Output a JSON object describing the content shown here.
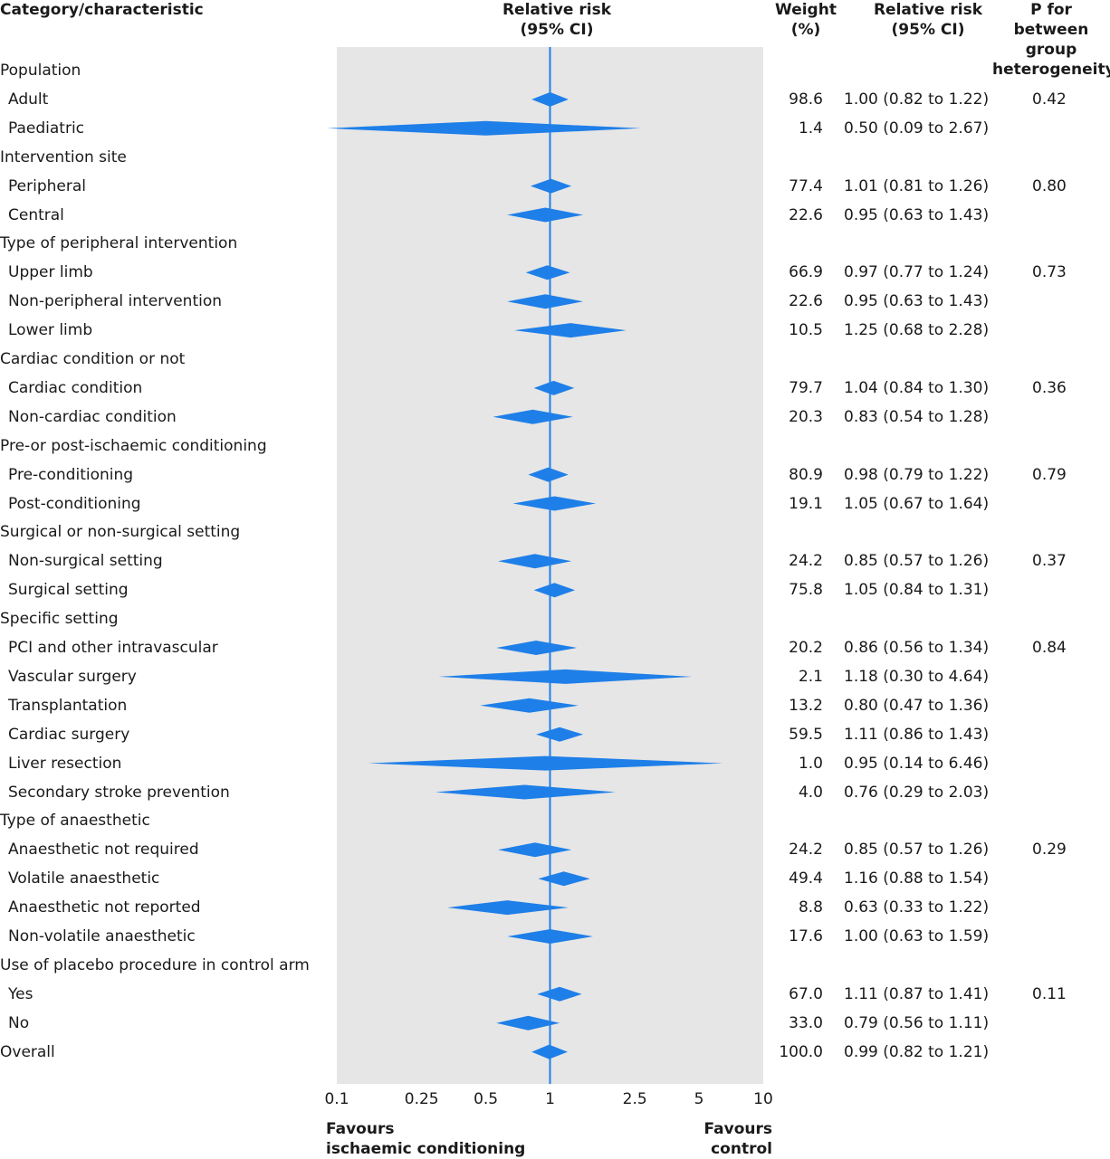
{
  "headers": {
    "category": "Category/characteristic",
    "rr_plot_1": "Relative risk",
    "rr_plot_2": "(95% CI)",
    "weight_1": "Weight",
    "weight_2": "(%)",
    "rr_1": "Relative risk",
    "rr_2": "(95% CI)",
    "p_1": "P for",
    "p_2": "between group",
    "p_3": "heterogeneity"
  },
  "favours": {
    "left_1": "Favours",
    "left_2": "ischaemic conditioning",
    "right_1": "Favours",
    "right_2": "control"
  },
  "colors": {
    "diamond": "#1f7fe8",
    "reference_line": "#1f7fe8",
    "plot_bg": "#e6e6e6"
  },
  "chart_data": {
    "type": "forest",
    "x_scale": "log",
    "xlim": [
      0.1,
      10
    ],
    "reference": 1,
    "ticks": [
      {
        "value": 0.1,
        "label": "0.1"
      },
      {
        "value": 0.25,
        "label": "0.25"
      },
      {
        "value": 0.5,
        "label": "0.5"
      },
      {
        "value": 1,
        "label": "1"
      },
      {
        "value": 2.5,
        "label": "2.5"
      },
      {
        "value": 5,
        "label": "5"
      },
      {
        "value": 10,
        "label": "10"
      }
    ],
    "rows": [
      {
        "label": "Population",
        "header": true
      },
      {
        "label": "Adult",
        "weight": "98.6",
        "ci": "1.00 (0.82 to 1.22)",
        "p": "0.42",
        "est": 1.0,
        "lo": 0.82,
        "hi": 1.22
      },
      {
        "label": "Paediatric",
        "weight": "1.4",
        "ci": "0.50 (0.09 to 2.67)",
        "est": 0.5,
        "lo": 0.09,
        "hi": 2.67
      },
      {
        "label": "Intervention site",
        "header": true
      },
      {
        "label": "Peripheral",
        "weight": "77.4",
        "ci": "1.01 (0.81 to 1.26)",
        "p": "0.80",
        "est": 1.01,
        "lo": 0.81,
        "hi": 1.26
      },
      {
        "label": "Central",
        "weight": "22.6",
        "ci": "0.95 (0.63 to 1.43)",
        "est": 0.95,
        "lo": 0.63,
        "hi": 1.43
      },
      {
        "label": "Type of peripheral intervention",
        "header": true
      },
      {
        "label": "Upper limb",
        "weight": "66.9",
        "ci": "0.97 (0.77 to 1.24)",
        "p": "0.73",
        "est": 0.97,
        "lo": 0.77,
        "hi": 1.24
      },
      {
        "label": "Non-peripheral intervention",
        "weight": "22.6",
        "ci": "0.95 (0.63 to 1.43)",
        "est": 0.95,
        "lo": 0.63,
        "hi": 1.43
      },
      {
        "label": "Lower limb",
        "weight": "10.5",
        "ci": "1.25 (0.68 to 2.28)",
        "est": 1.25,
        "lo": 0.68,
        "hi": 2.28
      },
      {
        "label": "Cardiac condition or not",
        "header": true
      },
      {
        "label": "Cardiac condition",
        "weight": "79.7",
        "ci": "1.04 (0.84 to 1.30)",
        "p": "0.36",
        "est": 1.04,
        "lo": 0.84,
        "hi": 1.3
      },
      {
        "label": "Non-cardiac condition",
        "weight": "20.3",
        "ci": "0.83 (0.54 to 1.28)",
        "est": 0.83,
        "lo": 0.54,
        "hi": 1.28
      },
      {
        "label": "Pre-or post-ischaemic conditioning",
        "header": true
      },
      {
        "label": "Pre-conditioning",
        "weight": "80.9",
        "ci": "0.98 (0.79 to 1.22)",
        "p": "0.79",
        "est": 0.98,
        "lo": 0.79,
        "hi": 1.22
      },
      {
        "label": "Post-conditioning",
        "weight": "19.1",
        "ci": "1.05 (0.67 to 1.64)",
        "est": 1.05,
        "lo": 0.67,
        "hi": 1.64
      },
      {
        "label": "Surgical or non-surgical setting",
        "header": true
      },
      {
        "label": "Non-surgical setting",
        "weight": "24.2",
        "ci": "0.85 (0.57 to 1.26)",
        "p": "0.37",
        "est": 0.85,
        "lo": 0.57,
        "hi": 1.26
      },
      {
        "label": "Surgical setting",
        "weight": "75.8",
        "ci": "1.05 (0.84 to 1.31)",
        "est": 1.05,
        "lo": 0.84,
        "hi": 1.31
      },
      {
        "label": "Specific setting",
        "header": true
      },
      {
        "label": "PCI and other intravascular",
        "weight": "20.2",
        "ci": "0.86 (0.56 to 1.34)",
        "p": "0.84",
        "est": 0.86,
        "lo": 0.56,
        "hi": 1.34
      },
      {
        "label": "Vascular surgery",
        "weight": "2.1",
        "ci": "1.18 (0.30 to 4.64)",
        "est": 1.18,
        "lo": 0.3,
        "hi": 4.64
      },
      {
        "label": "Transplantation",
        "weight": "13.2",
        "ci": "0.80 (0.47 to 1.36)",
        "est": 0.8,
        "lo": 0.47,
        "hi": 1.36
      },
      {
        "label": "Cardiac surgery",
        "weight": "59.5",
        "ci": "1.11 (0.86 to 1.43)",
        "est": 1.11,
        "lo": 0.86,
        "hi": 1.43
      },
      {
        "label": "Liver resection",
        "weight": "1.0",
        "ci": "0.95 (0.14 to 6.46)",
        "est": 0.95,
        "lo": 0.14,
        "hi": 6.46
      },
      {
        "label": "Secondary stroke prevention",
        "weight": "4.0",
        "ci": "0.76 (0.29 to 2.03)",
        "est": 0.76,
        "lo": 0.29,
        "hi": 2.03
      },
      {
        "label": "Type of anaesthetic",
        "header": true
      },
      {
        "label": "Anaesthetic not required",
        "weight": "24.2",
        "ci": "0.85 (0.57 to 1.26)",
        "p": "0.29",
        "est": 0.85,
        "lo": 0.57,
        "hi": 1.26
      },
      {
        "label": "Volatile anaesthetic",
        "weight": "49.4",
        "ci": "1.16 (0.88 to 1.54)",
        "est": 1.16,
        "lo": 0.88,
        "hi": 1.54
      },
      {
        "label": "Anaesthetic not reported",
        "weight": "8.8",
        "ci": "0.63 (0.33 to 1.22)",
        "est": 0.63,
        "lo": 0.33,
        "hi": 1.22
      },
      {
        "label": "Non-volatile anaesthetic",
        "weight": "17.6",
        "ci": "1.00 (0.63 to 1.59)",
        "est": 1.0,
        "lo": 0.63,
        "hi": 1.59
      },
      {
        "label": "Use of placebo procedure in control arm",
        "header": true
      },
      {
        "label": "Yes",
        "weight": "67.0",
        "ci": "1.11 (0.87 to 1.41)",
        "p": "0.11",
        "est": 1.11,
        "lo": 0.87,
        "hi": 1.41
      },
      {
        "label": "No",
        "weight": "33.0",
        "ci": "0.79 (0.56 to 1.11)",
        "est": 0.79,
        "lo": 0.56,
        "hi": 1.11
      },
      {
        "label": "Overall",
        "top": true,
        "weight": "100.0",
        "ci": "0.99 (0.82 to 1.21)",
        "est": 0.99,
        "lo": 0.82,
        "hi": 1.21
      }
    ]
  }
}
